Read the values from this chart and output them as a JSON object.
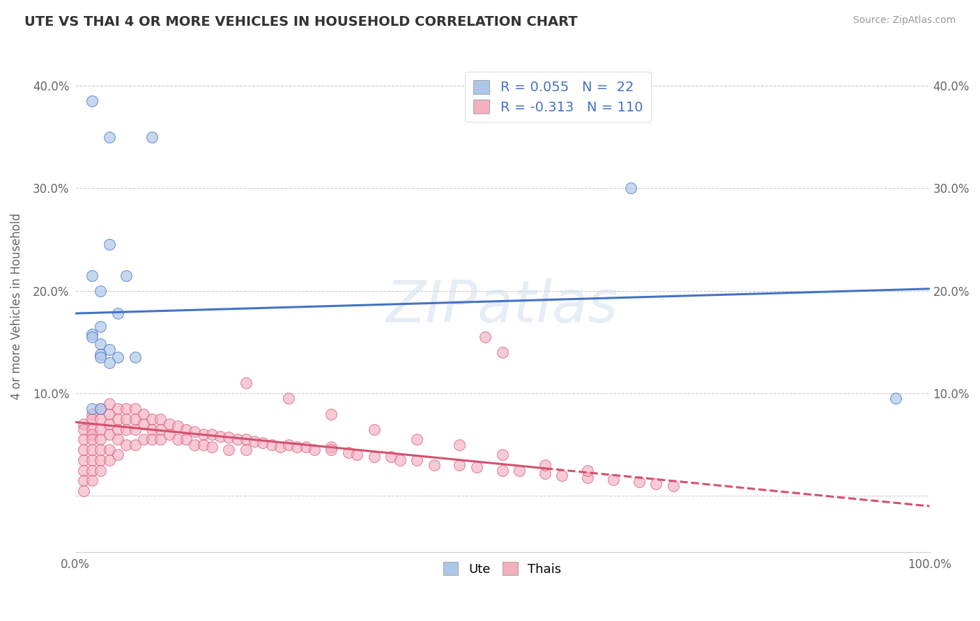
{
  "title": "UTE VS THAI 4 OR MORE VEHICLES IN HOUSEHOLD CORRELATION CHART",
  "source": "Source: ZipAtlas.com",
  "ylabel": "4 or more Vehicles in Household",
  "xlim": [
    0.0,
    1.0
  ],
  "ylim": [
    -0.055,
    0.425
  ],
  "yticks": [
    0.0,
    0.1,
    0.2,
    0.3,
    0.4
  ],
  "yticklabels": [
    "",
    "10.0%",
    "20.0%",
    "30.0%",
    "40.0%"
  ],
  "xticks": [
    0.0,
    0.25,
    0.5,
    0.75,
    1.0
  ],
  "xticklabels": [
    "0.0%",
    "",
    "",
    "",
    "100.0%"
  ],
  "legend_ute_R": "0.055",
  "legend_ute_N": "22",
  "legend_thai_R": "-0.313",
  "legend_thai_N": "110",
  "legend_labels": [
    "Ute",
    "Thais"
  ],
  "ute_color": "#aec6e8",
  "thai_color": "#f4b0c0",
  "ute_line_color": "#4472c4",
  "thai_line_color": "#d45070",
  "watermark": "ZIPatlas",
  "ute_scatter_x": [
    0.02,
    0.04,
    0.09,
    0.04,
    0.02,
    0.06,
    0.03,
    0.05,
    0.03,
    0.02,
    0.02,
    0.03,
    0.04,
    0.03,
    0.03,
    0.05,
    0.07,
    0.04,
    0.65,
    0.02,
    0.03,
    0.96
  ],
  "ute_scatter_y": [
    0.385,
    0.35,
    0.35,
    0.245,
    0.215,
    0.215,
    0.2,
    0.178,
    0.165,
    0.158,
    0.155,
    0.148,
    0.143,
    0.138,
    0.135,
    0.135,
    0.135,
    0.13,
    0.3,
    0.085,
    0.085,
    0.095
  ],
  "ute_line_x0": 0.0,
  "ute_line_x1": 1.0,
  "ute_line_y0": 0.178,
  "ute_line_y1": 0.202,
  "thai_line_x0": 0.0,
  "thai_line_x1": 1.0,
  "thai_line_y0": 0.072,
  "thai_line_y1": -0.01,
  "thai_scatter_x": [
    0.01,
    0.01,
    0.01,
    0.01,
    0.01,
    0.01,
    0.01,
    0.01,
    0.02,
    0.02,
    0.02,
    0.02,
    0.02,
    0.02,
    0.02,
    0.02,
    0.02,
    0.03,
    0.03,
    0.03,
    0.03,
    0.03,
    0.03,
    0.03,
    0.04,
    0.04,
    0.04,
    0.04,
    0.04,
    0.04,
    0.05,
    0.05,
    0.05,
    0.05,
    0.05,
    0.06,
    0.06,
    0.06,
    0.06,
    0.07,
    0.07,
    0.07,
    0.07,
    0.08,
    0.08,
    0.08,
    0.09,
    0.09,
    0.09,
    0.1,
    0.1,
    0.1,
    0.11,
    0.11,
    0.12,
    0.12,
    0.13,
    0.13,
    0.14,
    0.14,
    0.15,
    0.15,
    0.16,
    0.16,
    0.17,
    0.18,
    0.18,
    0.19,
    0.2,
    0.2,
    0.21,
    0.22,
    0.23,
    0.24,
    0.25,
    0.26,
    0.27,
    0.28,
    0.3,
    0.3,
    0.32,
    0.33,
    0.35,
    0.37,
    0.38,
    0.4,
    0.42,
    0.45,
    0.47,
    0.5,
    0.52,
    0.55,
    0.57,
    0.6,
    0.63,
    0.66,
    0.68,
    0.7,
    0.48,
    0.5,
    0.2,
    0.25,
    0.3,
    0.35,
    0.4,
    0.45,
    0.5,
    0.55,
    0.6
  ],
  "thai_scatter_y": [
    0.07,
    0.065,
    0.055,
    0.045,
    0.035,
    0.025,
    0.015,
    0.005,
    0.08,
    0.075,
    0.065,
    0.06,
    0.055,
    0.045,
    0.035,
    0.025,
    0.015,
    0.085,
    0.075,
    0.065,
    0.055,
    0.045,
    0.035,
    0.025,
    0.09,
    0.08,
    0.07,
    0.06,
    0.045,
    0.035,
    0.085,
    0.075,
    0.065,
    0.055,
    0.04,
    0.085,
    0.075,
    0.065,
    0.05,
    0.085,
    0.075,
    0.065,
    0.05,
    0.08,
    0.07,
    0.055,
    0.075,
    0.065,
    0.055,
    0.075,
    0.065,
    0.055,
    0.07,
    0.06,
    0.068,
    0.055,
    0.065,
    0.055,
    0.063,
    0.05,
    0.06,
    0.05,
    0.06,
    0.048,
    0.058,
    0.057,
    0.045,
    0.055,
    0.055,
    0.045,
    0.053,
    0.052,
    0.05,
    0.048,
    0.05,
    0.048,
    0.048,
    0.045,
    0.048,
    0.045,
    0.042,
    0.04,
    0.038,
    0.038,
    0.035,
    0.035,
    0.03,
    0.03,
    0.028,
    0.025,
    0.025,
    0.022,
    0.02,
    0.018,
    0.016,
    0.014,
    0.012,
    0.01,
    0.155,
    0.14,
    0.11,
    0.095,
    0.08,
    0.065,
    0.055,
    0.05,
    0.04,
    0.03,
    0.025
  ]
}
